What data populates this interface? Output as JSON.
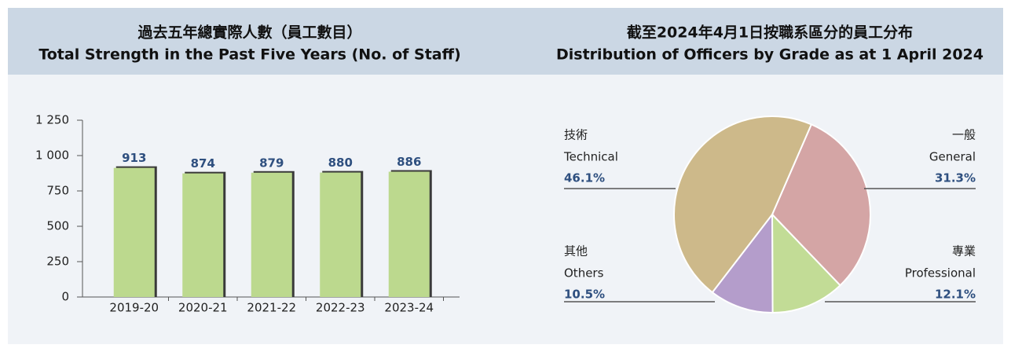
{
  "chart_data": [
    {
      "type": "bar",
      "title": "過去五年總實際人數（員工數目）",
      "subtitle": "Total Strength in the Past Five Years (No. of Staff)",
      "categories": [
        "2019-20",
        "2020-21",
        "2021-22",
        "2022-23",
        "2023-24"
      ],
      "values": [
        913,
        874,
        879,
        880,
        886
      ],
      "color": "#bcd98e",
      "ylim": [
        0,
        1250
      ],
      "yticks": [
        0,
        250,
        500,
        750,
        {
          "value": 1000,
          "label": "1 000"
        },
        {
          "value": 1250,
          "label": "1 250"
        }
      ]
    },
    {
      "type": "pie",
      "title": "截至2024年4月1日按職系區分的員工分布",
      "subtitle": "Distribution of Officers by Grade as at 1 April 2024",
      "categories": [
        "General",
        "Professional",
        "Others",
        "Technical"
      ],
      "categories_zh": [
        "一般",
        "專業",
        "其他",
        "技術"
      ],
      "values": [
        31.3,
        12.1,
        10.5,
        46.1
      ],
      "value_labels": [
        "31.3%",
        "12.1%",
        "10.5%",
        "46.1%"
      ],
      "colors": [
        "#d4a5a5",
        "#c2dc96",
        "#b49dcb",
        "#cdb98a"
      ]
    }
  ]
}
